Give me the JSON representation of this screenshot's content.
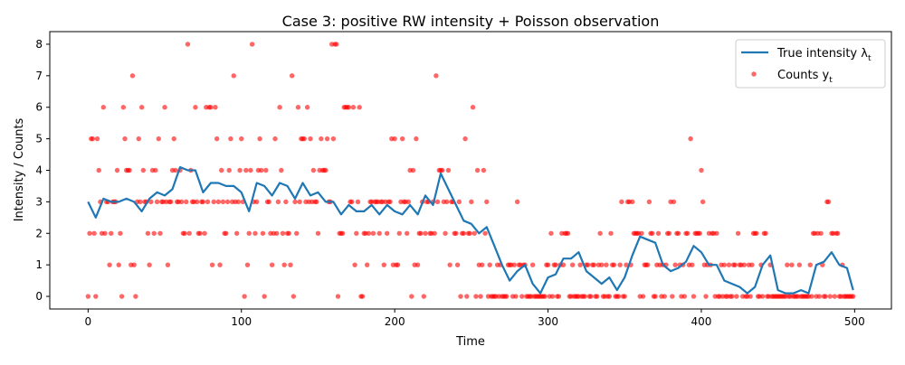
{
  "chart_data": {
    "type": "line",
    "title": "Case 3: positive RW intensity + Poisson observation",
    "xlabel": "Time",
    "ylabel": "Intensity / Counts",
    "xlim": [
      -25,
      524
    ],
    "ylim": [
      -0.4,
      8.4
    ],
    "xticks": [
      0,
      100,
      200,
      300,
      400,
      500
    ],
    "yticks": [
      0,
      1,
      2,
      3,
      4,
      5,
      6,
      7,
      8
    ],
    "grid": false,
    "legend": {
      "placement": "top-right",
      "entries": [
        {
          "label": "True intensity λ",
          "sub": "t",
          "kind": "line"
        },
        {
          "label": "Counts y",
          "sub": "t",
          "kind": "marker"
        }
      ]
    },
    "series": [
      {
        "name": "True intensity λt",
        "color": "#1f77b4",
        "kind": "line",
        "x": [
          0,
          5,
          10,
          15,
          20,
          25,
          30,
          35,
          40,
          45,
          50,
          55,
          60,
          65,
          70,
          75,
          80,
          85,
          90,
          95,
          100,
          105,
          110,
          115,
          120,
          125,
          130,
          135,
          140,
          145,
          150,
          155,
          160,
          165,
          170,
          175,
          180,
          185,
          190,
          195,
          200,
          205,
          210,
          215,
          220,
          225,
          230,
          235,
          240,
          245,
          250,
          255,
          260,
          265,
          270,
          275,
          280,
          285,
          290,
          295,
          300,
          305,
          310,
          315,
          320,
          325,
          330,
          335,
          340,
          345,
          350,
          355,
          360,
          365,
          370,
          375,
          380,
          385,
          390,
          395,
          400,
          405,
          410,
          415,
          420,
          425,
          430,
          435,
          440,
          445,
          450,
          455,
          460,
          465,
          470,
          475,
          480,
          485,
          490,
          495,
          499
        ],
        "values": [
          3.0,
          2.5,
          3.1,
          3.0,
          3.0,
          3.1,
          3.0,
          2.7,
          3.1,
          3.3,
          3.2,
          3.4,
          4.1,
          4.0,
          4.0,
          3.3,
          3.6,
          3.6,
          3.5,
          3.5,
          3.3,
          2.7,
          3.6,
          3.5,
          3.2,
          3.6,
          3.5,
          3.1,
          3.6,
          3.2,
          3.3,
          3.0,
          3.0,
          2.6,
          2.9,
          2.7,
          2.7,
          2.9,
          2.6,
          2.9,
          2.7,
          2.6,
          2.9,
          2.6,
          3.2,
          2.9,
          3.9,
          3.4,
          2.9,
          2.4,
          2.3,
          2.0,
          2.2,
          1.6,
          1.0,
          0.5,
          0.8,
          1.0,
          0.4,
          0.1,
          0.6,
          0.7,
          1.2,
          1.2,
          1.4,
          0.8,
          0.6,
          0.4,
          0.6,
          0.2,
          0.6,
          1.3,
          1.9,
          1.8,
          1.7,
          1.0,
          0.8,
          0.9,
          1.1,
          1.6,
          1.4,
          1.0,
          1.0,
          0.5,
          0.4,
          0.3,
          0.1,
          0.3,
          1.0,
          1.3,
          0.2,
          0.1,
          0.1,
          0.2,
          0.1,
          1.0,
          1.1,
          1.4,
          1.0,
          0.9,
          0.2
        ]
      },
      {
        "name": "Counts yt",
        "color": "#ff0000",
        "kind": "scatter",
        "x_start": 0,
        "values": [
          0,
          2,
          5,
          5,
          2,
          0,
          5,
          4,
          3,
          2,
          6,
          2,
          3,
          3,
          1,
          2,
          3,
          3,
          3,
          4,
          1,
          2,
          0,
          6,
          5,
          4,
          4,
          4,
          1,
          7,
          1,
          0,
          3,
          5,
          3,
          6,
          4,
          3,
          3,
          2,
          1,
          3,
          4,
          2,
          4,
          3,
          5,
          2,
          3,
          3,
          6,
          3,
          1,
          3,
          3,
          4,
          5,
          4,
          3,
          3,
          4,
          3,
          2,
          2,
          3,
          8,
          2,
          4,
          3,
          3,
          6,
          3,
          2,
          2,
          3,
          3,
          2,
          6,
          3,
          6,
          6,
          1,
          3,
          6,
          5,
          3,
          1,
          4,
          3,
          2,
          2,
          3,
          4,
          5,
          3,
          7,
          3,
          2,
          3,
          4,
          5,
          3,
          0,
          4,
          1,
          2,
          4,
          8,
          3,
          2,
          3,
          4,
          5,
          4,
          2,
          0,
          4,
          3,
          3,
          2,
          1,
          2,
          5,
          2,
          3,
          6,
          4,
          2,
          1,
          3,
          2,
          2,
          1,
          7,
          0,
          3,
          2,
          6,
          3,
          5,
          5,
          5,
          3,
          6,
          3,
          5,
          3,
          4,
          3,
          3,
          2,
          4,
          5,
          4,
          4,
          4,
          5,
          3,
          3,
          8,
          5,
          8,
          8,
          0,
          2,
          2,
          2,
          6,
          6,
          6,
          6,
          3,
          3,
          6,
          1,
          2,
          3,
          6,
          0,
          0,
          2,
          2,
          1,
          2,
          3,
          3,
          2,
          3,
          3,
          3,
          2,
          3,
          3,
          1,
          3,
          2,
          3,
          3,
          5,
          1,
          5,
          1,
          1,
          2,
          3,
          5,
          3,
          3,
          2,
          3,
          4,
          0,
          4,
          1,
          5,
          1,
          2,
          2,
          3,
          0,
          2,
          3,
          3,
          2,
          2,
          3,
          2,
          7,
          3,
          4,
          4,
          4,
          3,
          2,
          3,
          4,
          1,
          3,
          3,
          2,
          2,
          1,
          3,
          0,
          2,
          2,
          5,
          0,
          2,
          2,
          3,
          6,
          2,
          0,
          4,
          1,
          0,
          1,
          4,
          2,
          3,
          0,
          1,
          0,
          0,
          0,
          0,
          1,
          0,
          1,
          0,
          0,
          0,
          0,
          1,
          1,
          1,
          0,
          1,
          0,
          3,
          1,
          1,
          0,
          1,
          1,
          0,
          0,
          0,
          0,
          1,
          0,
          0,
          0,
          0,
          0,
          0,
          0,
          0,
          1,
          1,
          0,
          2,
          0,
          1,
          1,
          0,
          0,
          1,
          2,
          1,
          2,
          2,
          2,
          0,
          0,
          1,
          0,
          0,
          0,
          0,
          1,
          0,
          0,
          0,
          1,
          1,
          0,
          0,
          1,
          1,
          0,
          0,
          1,
          2,
          1,
          0,
          0,
          1,
          0,
          0,
          2,
          1,
          1,
          0,
          0,
          0,
          1,
          3,
          0,
          0,
          1,
          3,
          3,
          1,
          3,
          2,
          2,
          2,
          2,
          0,
          2,
          0,
          1,
          1,
          1,
          3,
          2,
          2,
          0,
          0,
          1,
          2,
          1,
          0,
          1,
          0,
          1,
          2,
          2,
          3,
          0,
          3,
          1,
          2,
          2,
          1,
          0,
          1,
          0,
          2,
          2,
          1,
          5,
          1,
          0,
          2,
          2,
          2,
          2,
          4,
          3,
          1,
          0,
          1,
          2,
          1,
          2,
          2,
          0,
          2,
          0,
          0,
          1,
          0,
          1,
          0,
          0,
          1,
          0,
          0,
          1,
          1,
          0,
          2,
          1,
          1,
          0,
          1,
          0,
          0,
          1,
          0,
          1,
          2,
          2,
          2,
          0,
          0,
          1,
          0,
          2,
          2,
          0,
          0,
          1,
          0,
          0,
          0,
          0,
          0,
          0,
          0,
          0,
          0,
          0,
          1,
          0,
          0,
          1,
          0,
          0,
          0,
          0,
          1,
          0,
          0,
          0,
          0,
          0,
          0,
          1,
          0,
          2,
          2,
          0,
          2,
          0,
          2,
          1,
          0,
          0,
          3,
          3,
          0,
          2,
          2,
          0,
          2,
          2,
          0,
          0,
          1,
          0,
          0,
          0,
          0,
          0,
          0,
          0
        ]
      }
    ]
  }
}
